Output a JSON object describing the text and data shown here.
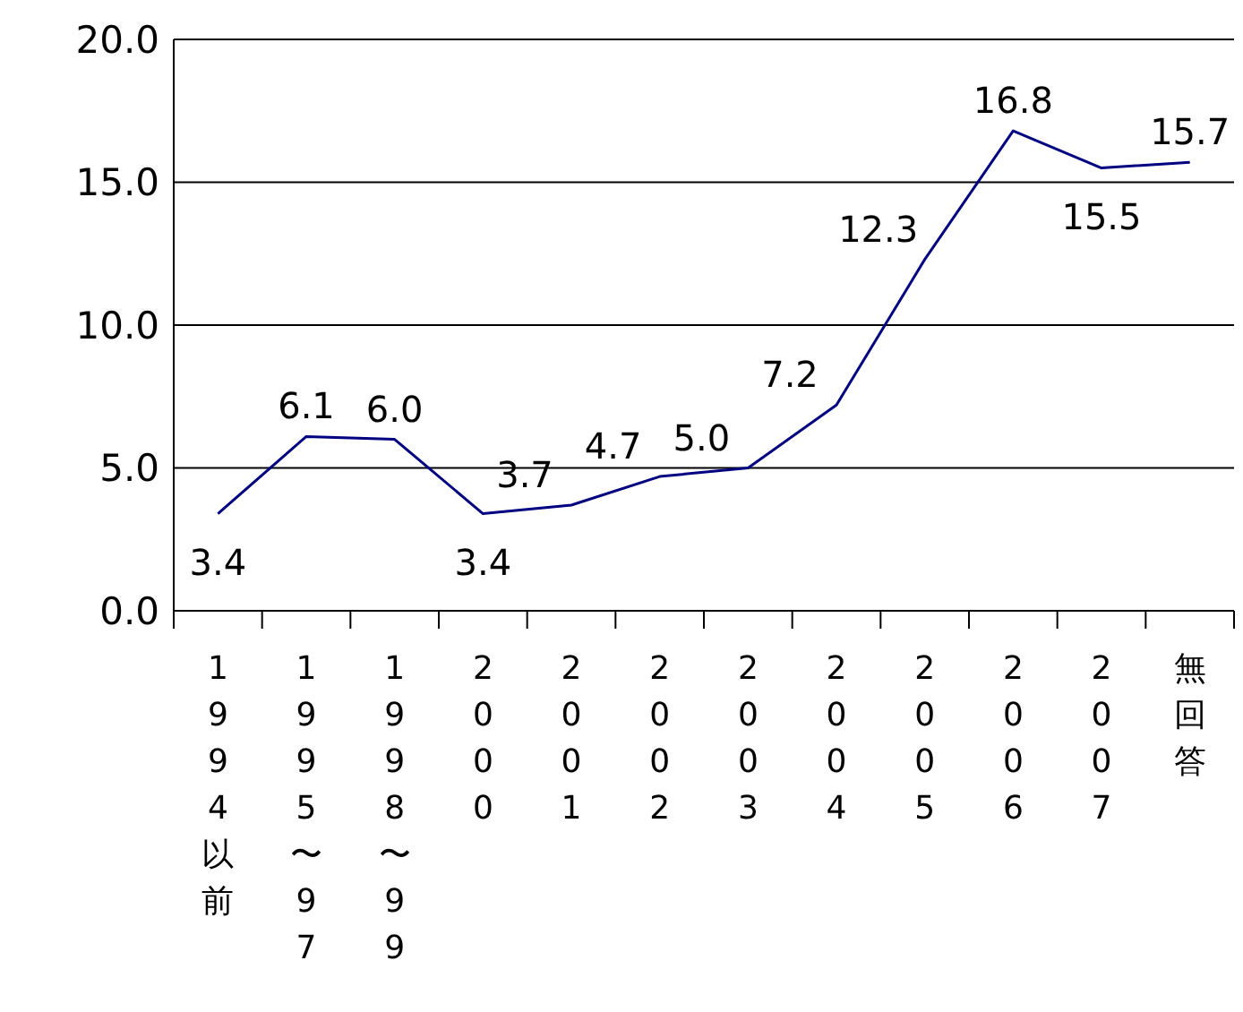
{
  "chart_data": {
    "type": "line",
    "categories": [
      "1994以前",
      "1995〜97",
      "1998〜99",
      "2000",
      "2001",
      "2002",
      "2003",
      "2004",
      "2005",
      "2006",
      "2007",
      "無回答"
    ],
    "series": [
      {
        "color": "#000080",
        "values": [
          3.4,
          6.1,
          6.0,
          3.4,
          3.7,
          4.7,
          5.0,
          7.2,
          12.3,
          16.8,
          15.5,
          15.7
        ],
        "value_labels": [
          "3.4",
          "6.1",
          "6.0",
          "3.4",
          "3.7",
          "4.7",
          "5.0",
          "7.2",
          "12.3",
          "16.8",
          "15.5",
          "15.7"
        ]
      }
    ],
    "ylim": [
      0,
      20
    ],
    "yticks": [
      {
        "value": 0,
        "label": "0.0"
      },
      {
        "value": 5,
        "label": "5.0"
      },
      {
        "value": 10,
        "label": "10.0"
      },
      {
        "value": 15,
        "label": "15.0"
      },
      {
        "value": 20,
        "label": "20.0"
      }
    ],
    "grid": "y",
    "marker": "none",
    "line_style": "solid"
  }
}
